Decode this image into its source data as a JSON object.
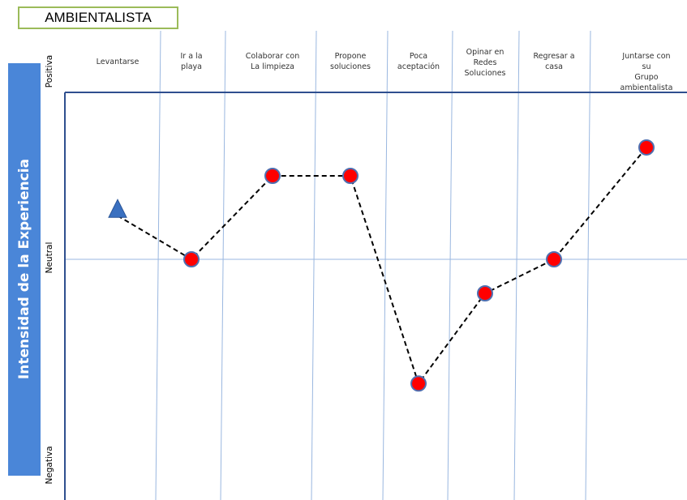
{
  "title": "AMBIENTALISTA",
  "side_label": "Intensidad de la Experiencia",
  "axis_labels": {
    "positive": "Positiva",
    "neutral": "Neutral",
    "negative": "Negativa"
  },
  "columns": [
    {
      "label": "Levantarse"
    },
    {
      "label": "Ir a la\nplaya"
    },
    {
      "label": "Colaborar con\nLa limpieza"
    },
    {
      "label": "Propone\nsoluciones"
    },
    {
      "label": "Poca\naceptación"
    },
    {
      "label": "Opinar en\nRedes\nSoluciones"
    },
    {
      "label": "Regresar a\ncasa"
    },
    {
      "label": "Juntarse con su\nGrupo ambientalista"
    }
  ],
  "colors": {
    "sidebar": "#4a86d8",
    "title_border": "#9bbb59",
    "frame": "#2f4f8f",
    "grid": "#9ab7e0",
    "point_fill": "#ff0000",
    "point_stroke": "#4f6fb0",
    "triangle": "#3a70c0",
    "line": "#000000"
  },
  "chart_data": {
    "type": "line",
    "categories": [
      "Levantarse",
      "Ir a la playa",
      "Colaborar con La limpieza",
      "Propone soluciones",
      "Poca aceptación",
      "Opinar en Redes Soluciones",
      "Regresar a casa",
      "Juntarse con su Grupo ambientalista"
    ],
    "values": [
      0.3,
      0.0,
      0.5,
      0.5,
      -0.73,
      -0.2,
      0.0,
      0.67
    ],
    "markers": [
      "triangle",
      "circle",
      "circle",
      "circle",
      "circle",
      "circle",
      "circle",
      "circle"
    ],
    "ylim": [
      -1,
      1
    ],
    "ylabel": "Intensidad de la Experiencia",
    "yticklabels": [
      "Negativa",
      "Neutral",
      "Positiva"
    ]
  }
}
